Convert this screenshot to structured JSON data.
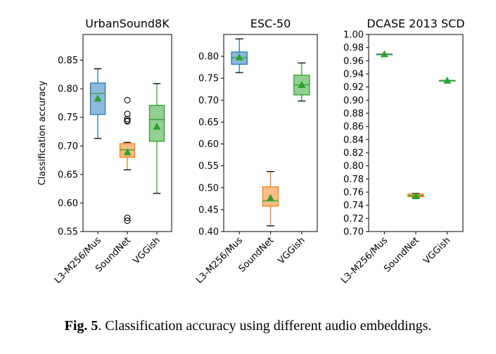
{
  "chart_data": [
    {
      "type": "box",
      "title": "UrbanSound8K",
      "ylabel": "Classification accuracy",
      "ylim": [
        0.55,
        0.895
      ],
      "yticks": [
        0.55,
        0.6,
        0.65,
        0.7,
        0.75,
        0.8,
        0.85
      ],
      "ytick_labels": [
        "0.55",
        "0.60",
        "0.65",
        "0.70",
        "0.75",
        "0.80",
        "0.85"
      ],
      "categories": [
        "L3-M256/Mus",
        "SoundNet",
        "VGGish"
      ],
      "boxes": [
        {
          "whislo": 0.713,
          "q1": 0.755,
          "med": 0.792,
          "q3": 0.81,
          "whishi": 0.835,
          "mean": 0.783,
          "fliers": [],
          "color": "#1f77b4"
        },
        {
          "whislo": 0.658,
          "q1": 0.68,
          "med": 0.693,
          "q3": 0.704,
          "whishi": 0.706,
          "mean": 0.689,
          "fliers": [
            0.78,
            0.756,
            0.747,
            0.744,
            0.743,
            0.574,
            0.569
          ],
          "color": "#ff7f0e"
        },
        {
          "whislo": 0.617,
          "q1": 0.708,
          "med": 0.746,
          "q3": 0.771,
          "whishi": 0.809,
          "mean": 0.734,
          "fliers": [],
          "color": "#2ca02c"
        }
      ]
    },
    {
      "type": "box",
      "title": "ESC-50",
      "ylim": [
        0.4,
        0.85
      ],
      "yticks": [
        0.4,
        0.45,
        0.5,
        0.55,
        0.6,
        0.65,
        0.7,
        0.75,
        0.8
      ],
      "ytick_labels": [
        "0.40",
        "0.45",
        "0.50",
        "0.55",
        "0.60",
        "0.65",
        "0.70",
        "0.75",
        "0.80"
      ],
      "categories": [
        "L3-M256/Mus",
        "SoundNet",
        "VGGish"
      ],
      "boxes": [
        {
          "whislo": 0.763,
          "q1": 0.782,
          "med": 0.797,
          "q3": 0.81,
          "whishi": 0.84,
          "mean": 0.798,
          "fliers": [],
          "color": "#1f77b4"
        },
        {
          "whislo": 0.413,
          "q1": 0.458,
          "med": 0.47,
          "q3": 0.502,
          "whishi": 0.537,
          "mean": 0.477,
          "fliers": [],
          "color": "#ff7f0e"
        },
        {
          "whislo": 0.698,
          "q1": 0.712,
          "med": 0.735,
          "q3": 0.757,
          "whishi": 0.785,
          "mean": 0.735,
          "fliers": [],
          "color": "#2ca02c"
        }
      ]
    },
    {
      "type": "box",
      "title": "DCASE 2013 SCD",
      "ylim": [
        0.7,
        1.0
      ],
      "yticks": [
        0.7,
        0.72,
        0.74,
        0.76,
        0.78,
        0.8,
        0.82,
        0.84,
        0.86,
        0.88,
        0.9,
        0.92,
        0.94,
        0.96,
        0.98,
        1.0
      ],
      "ytick_labels": [
        "0.70",
        "0.72",
        "0.74",
        "0.76",
        "0.78",
        "0.80",
        "0.82",
        "0.84",
        "0.86",
        "0.88",
        "0.90",
        "0.92",
        "0.94",
        "0.96",
        "0.98",
        "1.00"
      ],
      "categories": [
        "L3-M256/Mus",
        "SoundNet",
        "VGGish"
      ],
      "boxes": [
        {
          "whislo": 0.97,
          "q1": 0.97,
          "med": 0.97,
          "q3": 0.97,
          "whishi": 0.97,
          "mean": 0.97,
          "fliers": [],
          "color": "#1f77b4"
        },
        {
          "whislo": 0.752,
          "q1": 0.753,
          "med": 0.755,
          "q3": 0.757,
          "whishi": 0.758,
          "mean": 0.754,
          "fliers": [],
          "color": "#ff7f0e"
        },
        {
          "whislo": 0.93,
          "q1": 0.93,
          "med": 0.93,
          "q3": 0.93,
          "whishi": 0.93,
          "mean": 0.93,
          "fliers": [],
          "color": "#2ca02c"
        }
      ]
    }
  ],
  "caption": {
    "label": "Fig. 5",
    "text": ". Classification accuracy using different audio embeddings."
  }
}
